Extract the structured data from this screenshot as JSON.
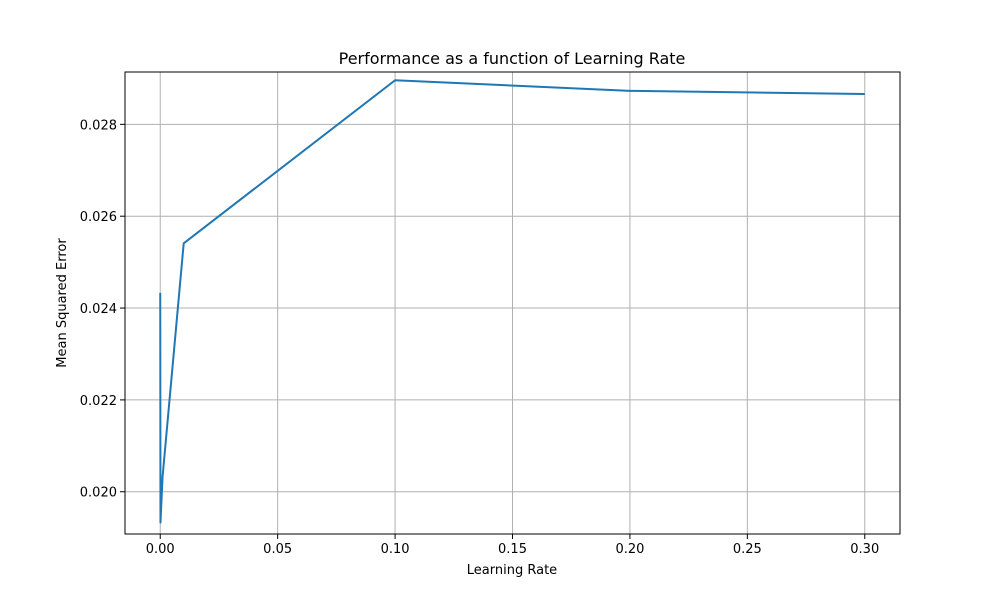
{
  "chart_data": {
    "type": "line",
    "title": "Performance as a function of Learning Rate",
    "xlabel": "Learning Rate",
    "ylabel": "Mean Squared Error",
    "xlim": [
      -0.015,
      0.315
    ],
    "ylim": [
      0.01908,
      0.02914
    ],
    "xticks": [
      0.0,
      0.05,
      0.1,
      0.15,
      0.2,
      0.25,
      0.3
    ],
    "xtick_labels": [
      "0.00",
      "0.05",
      "0.10",
      "0.15",
      "0.20",
      "0.25",
      "0.30"
    ],
    "yticks": [
      0.02,
      0.022,
      0.024,
      0.026,
      0.028
    ],
    "ytick_labels": [
      "0.020",
      "0.022",
      "0.024",
      "0.026",
      "0.028"
    ],
    "grid": true,
    "series": [
      {
        "color": "#1f77b4",
        "x": [
          1e-05,
          0.0001,
          0.001,
          0.01,
          0.1,
          0.2,
          0.3
        ],
        "y": [
          0.02433,
          0.01933,
          0.02033,
          0.02541,
          0.02896,
          0.02873,
          0.02866
        ]
      }
    ]
  }
}
